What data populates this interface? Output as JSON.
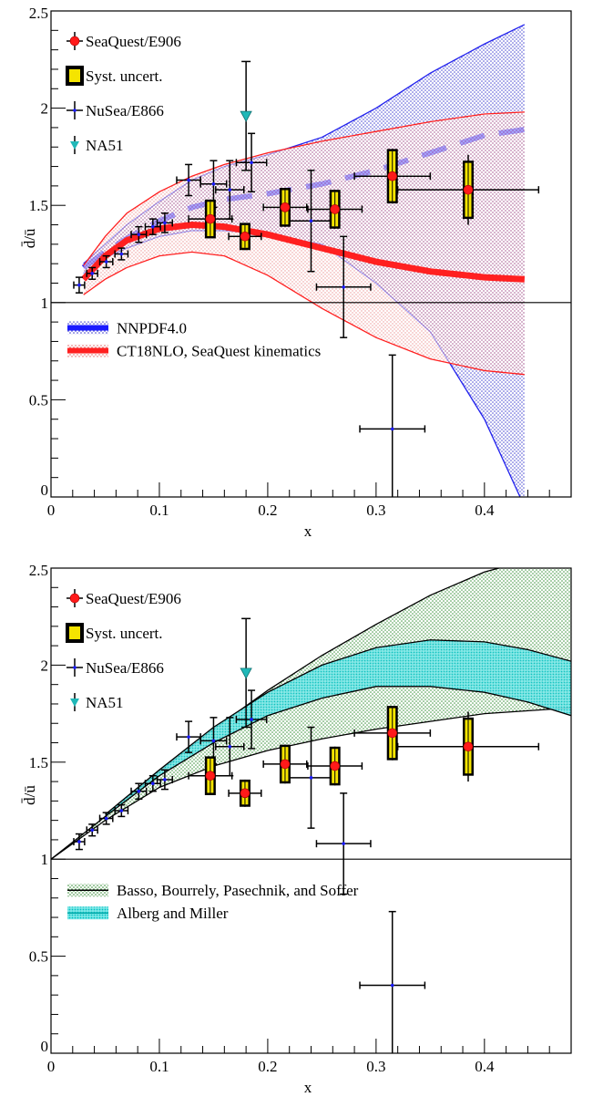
{
  "chart_data": [
    {
      "type": "scatter",
      "xlabel": "x",
      "ylabel": "d̄/ū",
      "xlim": [
        0,
        0.48
      ],
      "ylim": [
        0,
        2.5
      ],
      "x_ticks": [
        "0",
        "0.1",
        "0.2",
        "0.3",
        "0.4"
      ],
      "x_tick_values": [
        0,
        0.1,
        0.2,
        0.3,
        0.4
      ],
      "y_ticks": [
        "0",
        "0.5",
        "1",
        "1.5",
        "2",
        "2.5"
      ],
      "y_tick_values": [
        0,
        0.5,
        1,
        1.5,
        2,
        2.5
      ],
      "reference_line": 1,
      "legend": {
        "placement": "top-left",
        "entries": [
          "SeaQuest/E906",
          "Syst. uncert.",
          "NuSea/E866",
          "NA51"
        ]
      },
      "band_legend": {
        "placement": "center-left",
        "entries": [
          "NNPDF4.0",
          "CT18NLO, SeaQuest kinematics"
        ]
      },
      "seaquest": [
        {
          "x": 0.147,
          "y": 1.43,
          "xerr": 0.02,
          "yerr": 0.09,
          "syst": 0.1
        },
        {
          "x": 0.179,
          "y": 1.34,
          "xerr": 0.015,
          "yerr": 0.07,
          "syst": 0.07
        },
        {
          "x": 0.216,
          "y": 1.49,
          "xerr": 0.02,
          "yerr": 0.1,
          "syst": 0.1
        },
        {
          "x": 0.262,
          "y": 1.48,
          "xerr": 0.025,
          "yerr": 0.1,
          "syst": 0.1
        },
        {
          "x": 0.315,
          "y": 1.65,
          "xerr": 0.035,
          "yerr": 0.14,
          "syst": 0.14
        },
        {
          "x": 0.385,
          "y": 1.58,
          "xerr": 0.065,
          "yerr": 0.18,
          "syst": 0.15
        }
      ],
      "nusea": [
        {
          "x": 0.026,
          "y": 1.09,
          "xerr": 0.005,
          "yerr": 0.04
        },
        {
          "x": 0.038,
          "y": 1.15,
          "xerr": 0.005,
          "yerr": 0.03
        },
        {
          "x": 0.051,
          "y": 1.21,
          "xerr": 0.006,
          "yerr": 0.03
        },
        {
          "x": 0.065,
          "y": 1.25,
          "xerr": 0.006,
          "yerr": 0.03
        },
        {
          "x": 0.081,
          "y": 1.35,
          "xerr": 0.007,
          "yerr": 0.04
        },
        {
          "x": 0.094,
          "y": 1.39,
          "xerr": 0.007,
          "yerr": 0.04
        },
        {
          "x": 0.105,
          "y": 1.41,
          "xerr": 0.007,
          "yerr": 0.05
        },
        {
          "x": 0.127,
          "y": 1.63,
          "xerr": 0.011,
          "yerr": 0.08
        },
        {
          "x": 0.15,
          "y": 1.61,
          "xerr": 0.012,
          "yerr": 0.12
        },
        {
          "x": 0.165,
          "y": 1.58,
          "xerr": 0.013,
          "yerr": 0.15
        },
        {
          "x": 0.185,
          "y": 1.72,
          "xerr": 0.014,
          "yerr": 0.15
        },
        {
          "x": 0.24,
          "y": 1.42,
          "xerr": 0.02,
          "yerr": 0.26
        },
        {
          "x": 0.27,
          "y": 1.08,
          "xerr": 0.025,
          "yerr": 0.26
        },
        {
          "x": 0.315,
          "y": 0.35,
          "xerr": 0.03,
          "yerr": 0.38
        }
      ],
      "na51": [
        {
          "x": 0.18,
          "y": 1.96,
          "xerr": 0,
          "yerr": 0.28
        }
      ],
      "series": [
        {
          "name": "NNPDF4.0",
          "color": "#1a1aff",
          "x": [
            0.03,
            0.05,
            0.07,
            0.1,
            0.13,
            0.16,
            0.2,
            0.25,
            0.3,
            0.35,
            0.4,
            0.437
          ],
          "y": [
            1.18,
            1.26,
            1.33,
            1.42,
            1.49,
            1.53,
            1.56,
            1.61,
            1.68,
            1.77,
            1.86,
            1.89
          ],
          "upper": [
            1.2,
            1.3,
            1.4,
            1.52,
            1.63,
            1.7,
            1.76,
            1.85,
            2.0,
            2.18,
            2.33,
            2.43
          ],
          "lower": [
            1.15,
            1.23,
            1.28,
            1.34,
            1.37,
            1.37,
            1.35,
            1.3,
            1.1,
            0.85,
            0.4,
            -0.05
          ]
        },
        {
          "name": "CT18NLO, SeaQuest kinematics",
          "color": "#ff2020",
          "x": [
            0.03,
            0.05,
            0.07,
            0.1,
            0.13,
            0.16,
            0.2,
            0.25,
            0.3,
            0.35,
            0.4,
            0.437
          ],
          "y": [
            1.12,
            1.24,
            1.32,
            1.38,
            1.4,
            1.39,
            1.35,
            1.28,
            1.21,
            1.16,
            1.13,
            1.12
          ],
          "upper": [
            1.19,
            1.34,
            1.46,
            1.57,
            1.65,
            1.71,
            1.77,
            1.83,
            1.88,
            1.93,
            1.97,
            1.98
          ],
          "lower": [
            1.04,
            1.12,
            1.18,
            1.24,
            1.26,
            1.24,
            1.14,
            0.97,
            0.82,
            0.71,
            0.65,
            0.63
          ]
        }
      ]
    },
    {
      "type": "scatter",
      "xlabel": "x",
      "ylabel": "d̄/ū",
      "xlim": [
        0,
        0.48
      ],
      "ylim": [
        0,
        2.5
      ],
      "x_ticks": [
        "0",
        "0.1",
        "0.2",
        "0.3",
        "0.4"
      ],
      "x_tick_values": [
        0,
        0.1,
        0.2,
        0.3,
        0.4
      ],
      "y_ticks": [
        "0",
        "0.5",
        "1",
        "1.5",
        "2",
        "2.5"
      ],
      "y_tick_values": [
        0,
        0.5,
        1,
        1.5,
        2,
        2.5
      ],
      "reference_line": 1,
      "legend": {
        "placement": "top-left",
        "entries": [
          "SeaQuest/E906",
          "Syst. uncert.",
          "NuSea/E866",
          "NA51"
        ]
      },
      "band_legend": {
        "placement": "center-left",
        "entries": [
          "Basso, Bourrely, Pasechnik, and Soffer",
          "Alberg and Miller"
        ]
      },
      "seaquest": [
        {
          "x": 0.147,
          "y": 1.43,
          "xerr": 0.02,
          "yerr": 0.09,
          "syst": 0.1
        },
        {
          "x": 0.179,
          "y": 1.34,
          "xerr": 0.015,
          "yerr": 0.07,
          "syst": 0.07
        },
        {
          "x": 0.216,
          "y": 1.49,
          "xerr": 0.02,
          "yerr": 0.1,
          "syst": 0.1
        },
        {
          "x": 0.262,
          "y": 1.48,
          "xerr": 0.025,
          "yerr": 0.1,
          "syst": 0.1
        },
        {
          "x": 0.315,
          "y": 1.65,
          "xerr": 0.035,
          "yerr": 0.14,
          "syst": 0.14
        },
        {
          "x": 0.385,
          "y": 1.58,
          "xerr": 0.065,
          "yerr": 0.18,
          "syst": 0.15
        }
      ],
      "nusea": [
        {
          "x": 0.026,
          "y": 1.09,
          "xerr": 0.005,
          "yerr": 0.04
        },
        {
          "x": 0.038,
          "y": 1.15,
          "xerr": 0.005,
          "yerr": 0.03
        },
        {
          "x": 0.051,
          "y": 1.21,
          "xerr": 0.006,
          "yerr": 0.03
        },
        {
          "x": 0.065,
          "y": 1.25,
          "xerr": 0.006,
          "yerr": 0.03
        },
        {
          "x": 0.081,
          "y": 1.35,
          "xerr": 0.007,
          "yerr": 0.04
        },
        {
          "x": 0.094,
          "y": 1.39,
          "xerr": 0.007,
          "yerr": 0.04
        },
        {
          "x": 0.105,
          "y": 1.41,
          "xerr": 0.007,
          "yerr": 0.05
        },
        {
          "x": 0.127,
          "y": 1.63,
          "xerr": 0.011,
          "yerr": 0.08
        },
        {
          "x": 0.15,
          "y": 1.61,
          "xerr": 0.012,
          "yerr": 0.12
        },
        {
          "x": 0.165,
          "y": 1.58,
          "xerr": 0.013,
          "yerr": 0.15
        },
        {
          "x": 0.185,
          "y": 1.72,
          "xerr": 0.014,
          "yerr": 0.15
        },
        {
          "x": 0.24,
          "y": 1.42,
          "xerr": 0.02,
          "yerr": 0.26
        },
        {
          "x": 0.27,
          "y": 1.08,
          "xerr": 0.025,
          "yerr": 0.26
        },
        {
          "x": 0.315,
          "y": 0.35,
          "xerr": 0.03,
          "yerr": 0.38
        }
      ],
      "na51": [
        {
          "x": 0.18,
          "y": 1.96,
          "xerr": 0,
          "yerr": 0.28
        }
      ],
      "series": [
        {
          "name": "Basso, Bourrely, Pasechnik, and Soffer",
          "color": "#2e8b2e",
          "x": [
            0,
            0.05,
            0.1,
            0.15,
            0.2,
            0.25,
            0.3,
            0.35,
            0.4,
            0.48
          ],
          "upper": [
            1.0,
            1.22,
            1.45,
            1.67,
            1.87,
            2.05,
            2.21,
            2.36,
            2.48,
            2.6
          ],
          "lower": [
            1.0,
            1.2,
            1.37,
            1.48,
            1.56,
            1.62,
            1.67,
            1.71,
            1.75,
            1.78
          ]
        },
        {
          "name": "Alberg and Miller",
          "color": "#00dede",
          "x": [
            0.05,
            0.1,
            0.15,
            0.2,
            0.25,
            0.3,
            0.35,
            0.4,
            0.44,
            0.48
          ],
          "upper": [
            1.23,
            1.46,
            1.68,
            1.86,
            2.0,
            2.09,
            2.13,
            2.12,
            2.08,
            2.02
          ],
          "lower": [
            1.22,
            1.43,
            1.6,
            1.74,
            1.83,
            1.89,
            1.89,
            1.86,
            1.81,
            1.74
          ]
        }
      ]
    }
  ]
}
